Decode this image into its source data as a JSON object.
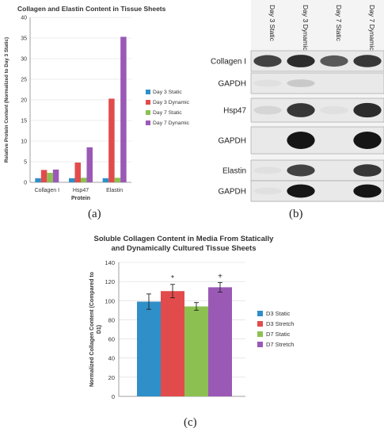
{
  "panel_labels": {
    "a": "(a)",
    "b": "(b)",
    "c": "(c)"
  },
  "colors": {
    "day3_static": "#2f8fc9",
    "day3_dynamic": "#e24b4b",
    "day7_static": "#8cc152",
    "day7_dynamic": "#9b59b6"
  },
  "chart_data": [
    {
      "type": "bar",
      "title": "Collagen and Elastin Content in Tissue Sheets",
      "xlabel": "Protein",
      "ylabel": "Relative Protein Content (Normalized to Day 3 Static)",
      "categories": [
        "Collagen I",
        "Hsp47",
        "Elastin"
      ],
      "ylim": [
        0,
        40
      ],
      "yticks": [
        0,
        5,
        10,
        15,
        20,
        25,
        30,
        35,
        40
      ],
      "legend_position": "right",
      "series": [
        {
          "name": "Day 3 Static",
          "color": "#2f8fc9",
          "values": [
            1,
            1,
            1
          ]
        },
        {
          "name": "Day 3 Dynamic",
          "color": "#e24b4b",
          "values": [
            3,
            4.8,
            20.3
          ]
        },
        {
          "name": "Day 7 Static",
          "color": "#8cc152",
          "values": [
            2.3,
            1.1,
            1.1
          ]
        },
        {
          "name": "Day 7 Dynamic",
          "color": "#9b59b6",
          "values": [
            3.1,
            8.5,
            35.3
          ]
        }
      ]
    },
    {
      "type": "bar",
      "title": "Soluble Collagen Content in Media From Statically and Dynamically Cultured Tissue Sheets",
      "title_lines": [
        "Soluble Collagen Content in Media From Statically",
        "and Dynamically Cultured Tissue Sheets"
      ],
      "xlabel": "",
      "ylabel": "Normalized Collagen Content (Compared to D1)",
      "ylabel_lines": [
        "Normalized Collagen Content (Compared to",
        "D1)"
      ],
      "categories": [
        "D3 Static",
        "D3 Stretch",
        "D7 Static",
        "D7 Stretch"
      ],
      "values": [
        99,
        110,
        94,
        114
      ],
      "errors": [
        8,
        7,
        4,
        5
      ],
      "colors": [
        "#2f8fc9",
        "#e24b4b",
        "#8cc152",
        "#9b59b6"
      ],
      "annotations": [
        "",
        "*",
        "",
        "+"
      ],
      "ylim": [
        0,
        140
      ],
      "yticks": [
        0,
        20,
        40,
        60,
        80,
        100,
        120,
        140
      ],
      "legend_position": "right"
    }
  ],
  "blot": {
    "columns": [
      "Day 3 Static",
      "Day 3 Dynamic",
      "Day 7 Static",
      "Day 7 Dynamic"
    ],
    "rows": [
      {
        "label": "Collagen I",
        "intensity": [
          0.75,
          0.85,
          0.65,
          0.8
        ]
      },
      {
        "label": "GAPDH",
        "intensity": [
          0.05,
          0.15,
          0.0,
          0.0
        ]
      },
      {
        "label": "Hsp47",
        "intensity": [
          0.1,
          0.8,
          0.05,
          0.85
        ]
      },
      {
        "label": "GAPDH",
        "intensity": [
          0.0,
          0.95,
          0.0,
          0.95
        ]
      },
      {
        "label": "Elastin",
        "intensity": [
          0.05,
          0.75,
          0.0,
          0.8
        ]
      },
      {
        "label": "GAPDH",
        "intensity": [
          0.05,
          0.95,
          0.0,
          0.95
        ]
      }
    ]
  }
}
